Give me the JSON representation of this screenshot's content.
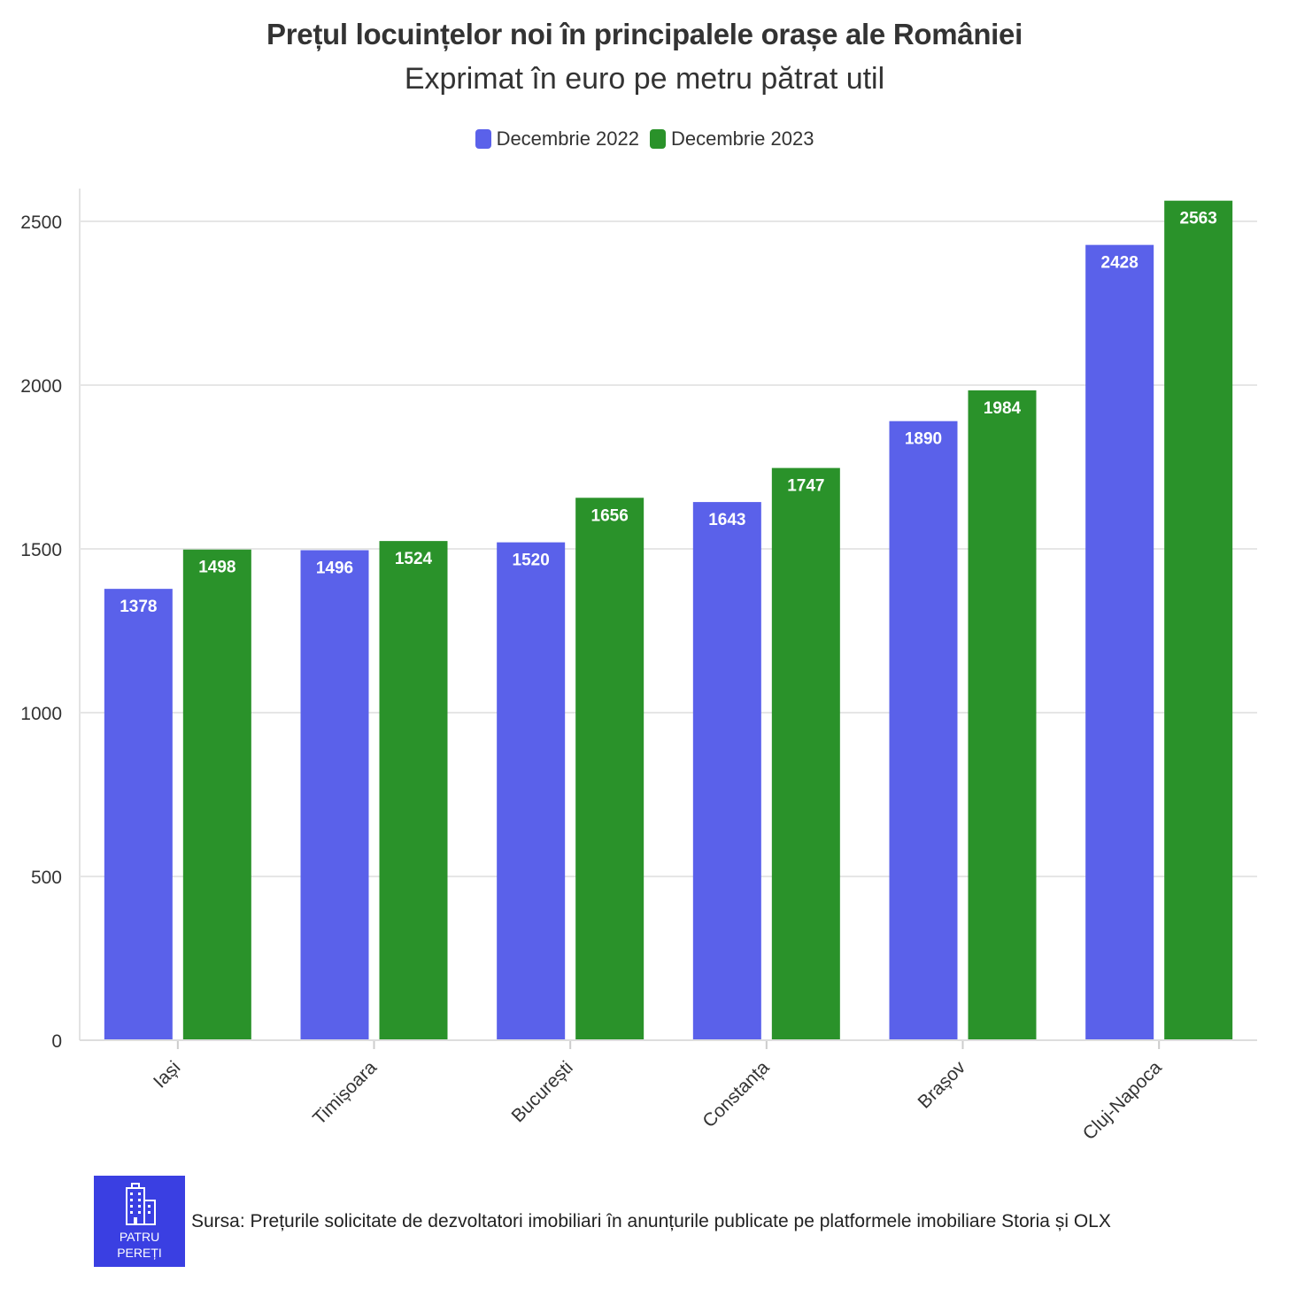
{
  "title": "Prețul locuințelor noi în principalele orașe ale României",
  "subtitle": "Exprimat în euro pe metru pătrat util",
  "legend": [
    {
      "label": "Decembrie 2022",
      "color": "#5a61ea"
    },
    {
      "label": "Decembrie 2023",
      "color": "#2a922a"
    }
  ],
  "chart_data": {
    "type": "bar",
    "categories": [
      "Iași",
      "Timișoara",
      "București",
      "Constanța",
      "Brașov",
      "Cluj-Napoca"
    ],
    "series": [
      {
        "name": "Decembrie 2022",
        "color": "#5a61ea",
        "values": [
          1378,
          1496,
          1520,
          1643,
          1890,
          2428
        ]
      },
      {
        "name": "Decembrie 2023",
        "color": "#2a922a",
        "values": [
          1498,
          1524,
          1656,
          1747,
          1984,
          2563
        ]
      }
    ],
    "ylim": [
      0,
      2600
    ],
    "yticks": [
      0,
      500,
      1000,
      1500,
      2000,
      2500
    ],
    "grid": true,
    "legend_position": "top-center",
    "data_labels": true
  },
  "footer": {
    "logo_line1": "PATRU",
    "logo_line2": "PEREȚI",
    "logo_icon": "building-icon",
    "source": "Sursa: Prețurile solicitate de dezvoltatori imobiliari în anunțurile publicate pe platformele imobiliare Storia și OLX"
  }
}
